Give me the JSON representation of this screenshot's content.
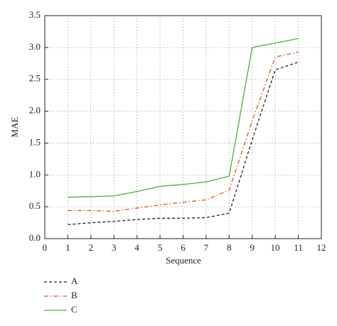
{
  "chart_data": {
    "type": "line",
    "x_label": "Sequence",
    "y_label": "MAE",
    "x": [
      1,
      2,
      3,
      4,
      5,
      6,
      7,
      8,
      9,
      10,
      11
    ],
    "series": [
      {
        "name": "A",
        "color": "#222222",
        "dash": "4,3",
        "values": [
          0.22,
          0.25,
          0.27,
          0.3,
          0.32,
          0.32,
          0.33,
          0.4,
          1.55,
          2.65,
          2.77
        ]
      },
      {
        "name": "B",
        "color": "#e0522a",
        "dash": "6,3,1.5,3",
        "values": [
          0.44,
          0.44,
          0.43,
          0.48,
          0.53,
          0.57,
          0.61,
          0.76,
          1.85,
          2.85,
          2.93
        ]
      },
      {
        "name": "C",
        "color": "#4caf3f",
        "dash": "none",
        "values": [
          0.65,
          0.66,
          0.67,
          0.74,
          0.82,
          0.85,
          0.89,
          0.98,
          3.0,
          3.07,
          3.14
        ]
      }
    ],
    "xlim": [
      0,
      12
    ],
    "xticks": [
      0,
      1,
      2,
      3,
      4,
      5,
      6,
      7,
      8,
      9,
      10,
      11,
      12
    ],
    "ylim": [
      0,
      3.5
    ],
    "yticks": [
      {
        "value": 0,
        "label": "0.0"
      },
      0.5,
      {
        "value": 1,
        "label": "1.0"
      },
      1.5,
      {
        "value": 2,
        "label": "2.0"
      },
      2.5,
      {
        "value": 3,
        "label": "3.0"
      },
      3.5
    ],
    "grid": true
  }
}
